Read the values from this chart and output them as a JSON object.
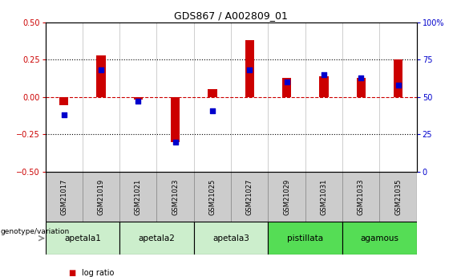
{
  "title": "GDS867 / A002809_01",
  "samples": [
    "GSM21017",
    "GSM21019",
    "GSM21021",
    "GSM21023",
    "GSM21025",
    "GSM21027",
    "GSM21029",
    "GSM21031",
    "GSM21033",
    "GSM21035"
  ],
  "log_ratio": [
    -0.055,
    0.28,
    -0.02,
    -0.3,
    0.055,
    0.38,
    0.13,
    0.14,
    0.13,
    0.25
  ],
  "percentile": [
    38,
    68,
    47,
    20,
    41,
    68,
    60,
    65,
    63,
    58
  ],
  "groups": [
    {
      "label": "apetala1",
      "samples": [
        0,
        1
      ],
      "color": "#cceecc"
    },
    {
      "label": "apetala2",
      "samples": [
        2,
        3
      ],
      "color": "#cceecc"
    },
    {
      "label": "apetala3",
      "samples": [
        4,
        5
      ],
      "color": "#cceecc"
    },
    {
      "label": "pistillata",
      "samples": [
        6,
        7
      ],
      "color": "#55dd55"
    },
    {
      "label": "agamous",
      "samples": [
        8,
        9
      ],
      "color": "#55dd55"
    }
  ],
  "ylim_left": [
    -0.5,
    0.5
  ],
  "ylim_right": [
    0,
    100
  ],
  "yticks_left": [
    -0.5,
    -0.25,
    0,
    0.25,
    0.5
  ],
  "yticks_right": [
    0,
    25,
    50,
    75,
    100
  ],
  "hlines_dotted": [
    0.25,
    -0.25
  ],
  "zero_line_color": "#cc0000",
  "bar_color": "#cc0000",
  "dot_color": "#0000cc",
  "bar_width": 0.25,
  "dot_size": 20,
  "sample_cell_color": "#cccccc",
  "ylabel_left_color": "#cc0000",
  "ylabel_right_color": "#0000cc",
  "background_color": "#ffffff"
}
